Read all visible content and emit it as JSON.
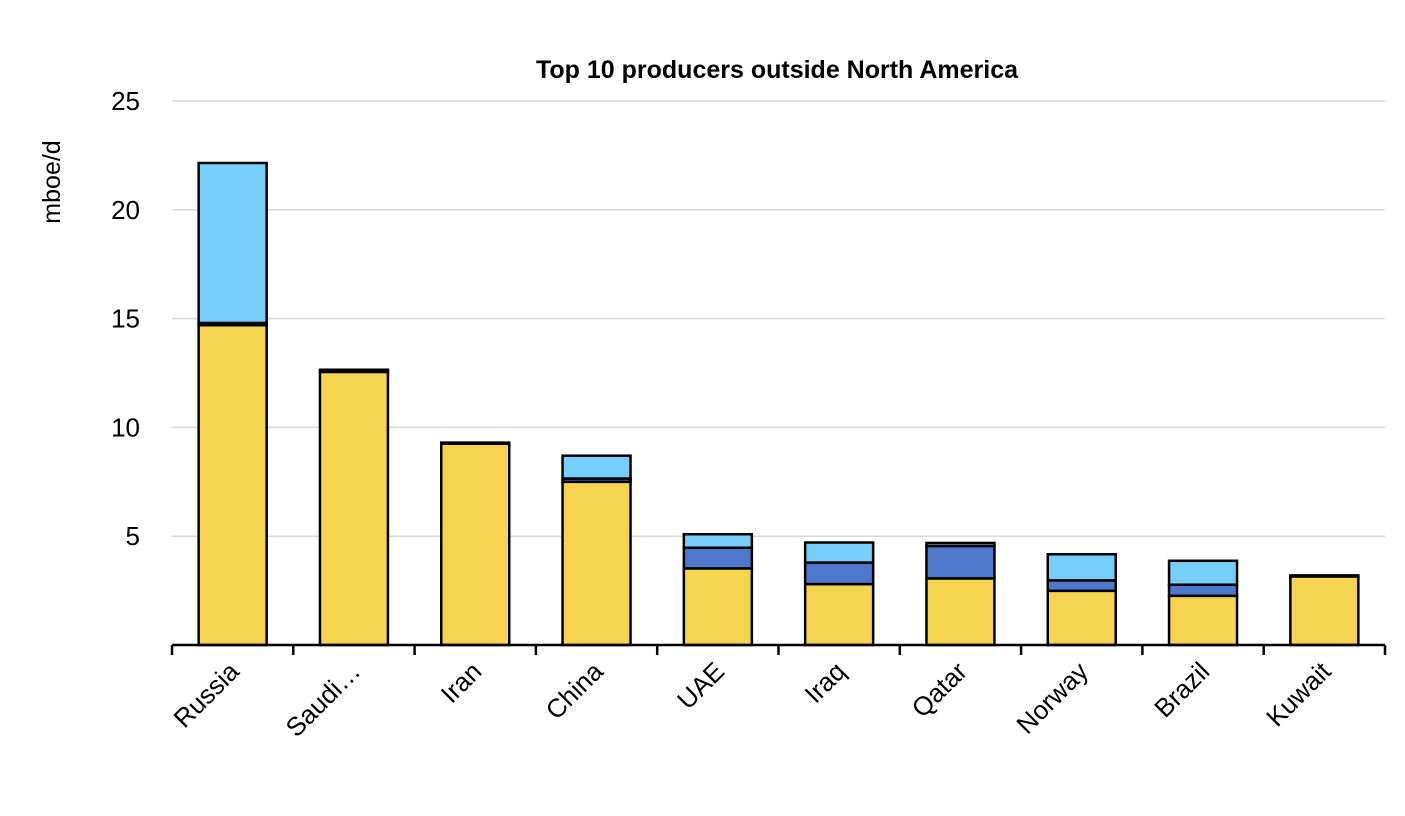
{
  "chart_data": {
    "type": "bar",
    "stacked": true,
    "title": "Top 10 producers outside North America",
    "xlabel": "",
    "ylabel": "mboe/d",
    "ylim": [
      0,
      25
    ],
    "yticks": [
      "5",
      "10",
      "15",
      "20",
      "25"
    ],
    "grid": true,
    "legend": "none",
    "categories": [
      "Russia",
      "Saudi…",
      "Iran",
      "China",
      "UAE",
      "Iraq",
      "Qatar",
      "Norway",
      "Brazil",
      "Kuwait"
    ],
    "series": [
      {
        "color": "#F5D44F",
        "values": [
          14.7,
          12.55,
          9.25,
          7.5,
          3.52,
          2.8,
          3.06,
          2.49,
          2.26,
          3.15
        ]
      },
      {
        "color": "#4E78CC",
        "values": [
          0.1,
          0.1,
          0.05,
          0.15,
          0.95,
          0.99,
          1.49,
          0.48,
          0.51,
          0.05
        ]
      },
      {
        "color": "#75CFFA",
        "values": [
          7.35,
          0,
          0,
          1.05,
          0.62,
          0.92,
          0.14,
          1.2,
          1.1,
          0
        ]
      }
    ]
  }
}
